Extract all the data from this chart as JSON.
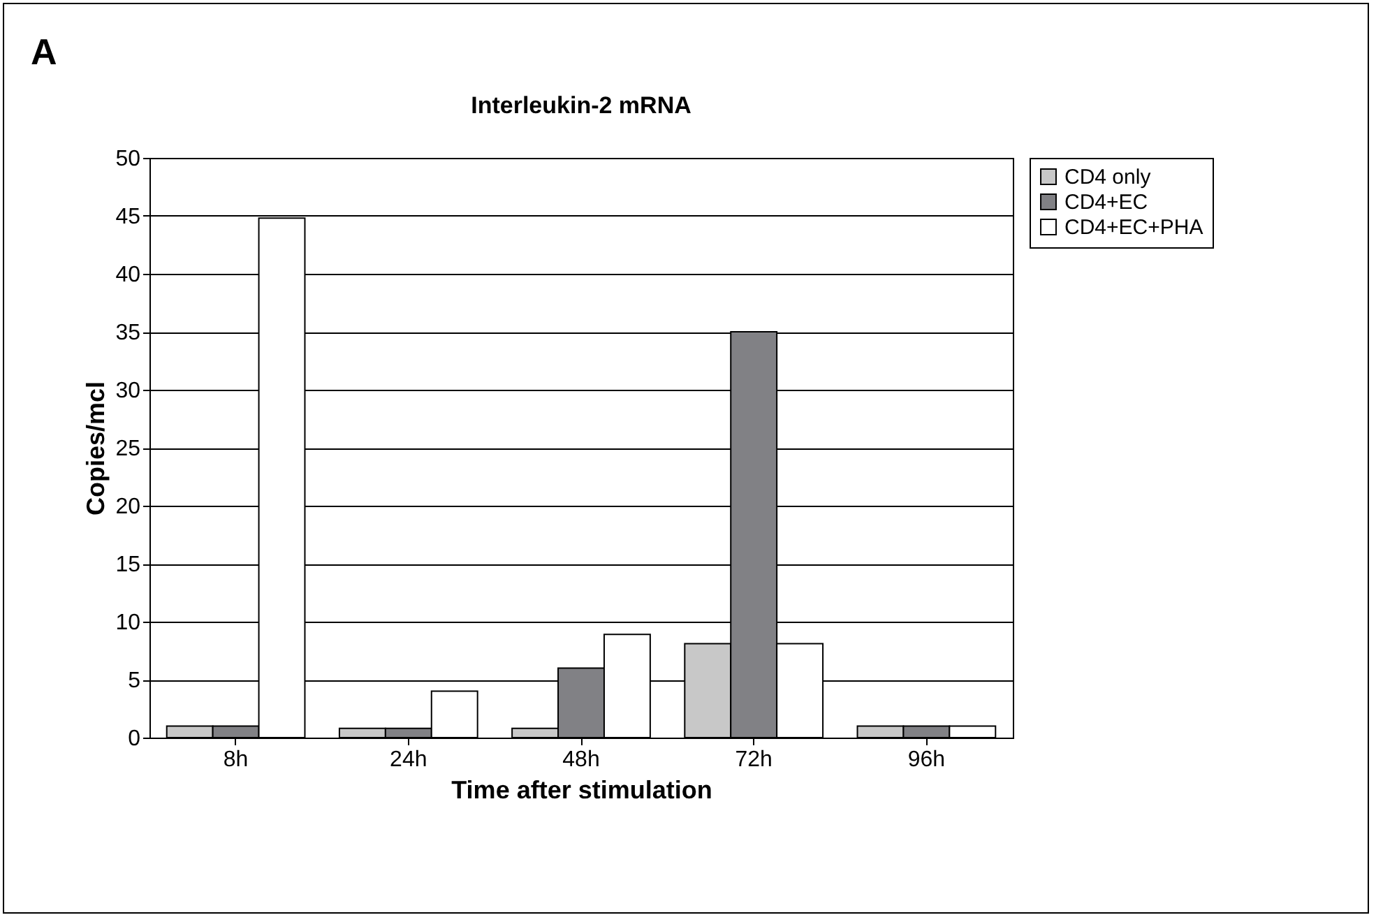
{
  "chart_data": {
    "type": "bar",
    "title": "Interleukin-2 mRNA",
    "xlabel": "Time after stimulation",
    "ylabel": "Copies/mcl",
    "annotations": [
      "A"
    ],
    "categories": [
      "8h",
      "24h",
      "48h",
      "72h",
      "96h"
    ],
    "series": [
      {
        "name": "CD4 only",
        "color": "#c8c8c8",
        "values": [
          1.0,
          0.8,
          0.8,
          8.1,
          1.0
        ]
      },
      {
        "name": "CD4+EC",
        "color": "#818185",
        "values": [
          1.0,
          0.8,
          6.0,
          35,
          1.0
        ]
      },
      {
        "name": "CD4+EC+PHA",
        "color": "#ffffff",
        "values": [
          44.8,
          4.0,
          8.9,
          8.1,
          1.0
        ]
      }
    ],
    "ylim": [
      0,
      50
    ],
    "yticks": [
      0,
      5,
      10,
      15,
      20,
      25,
      30,
      35,
      40,
      45,
      50
    ],
    "grid": "y",
    "legend": "right"
  }
}
